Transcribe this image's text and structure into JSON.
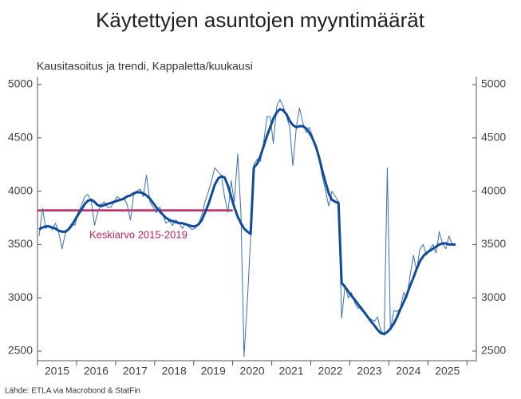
{
  "chart_data": {
    "type": "line",
    "title": "Käytettyjen asuntojen myyntimäärät",
    "subtitle": "Kausitasoitus ja trendi, Kappaletta/kuukausi",
    "source": "Lähde: ETLA via Macrobond & StatFin",
    "annotation": {
      "text": "Keskiarvo 2015-2019",
      "value": 3820,
      "x": [
        2015,
        2020
      ],
      "color": "#c0245c"
    },
    "xlim": [
      2015,
      2026.24
    ],
    "xticks": [
      {
        "value": 2015.5,
        "label": "2015"
      },
      {
        "value": 2016.5,
        "label": "2016"
      },
      {
        "value": 2017.5,
        "label": "2017"
      },
      {
        "value": 2018.5,
        "label": "2018"
      },
      {
        "value": 2019.5,
        "label": "2019"
      },
      {
        "value": 2020.5,
        "label": "2020"
      },
      {
        "value": 2021.5,
        "label": "2021"
      },
      {
        "value": 2022.5,
        "label": "2022"
      },
      {
        "value": 2023.5,
        "label": "2023"
      },
      {
        "value": 2024.5,
        "label": "2024"
      },
      {
        "value": 2025.5,
        "label": "2025"
      }
    ],
    "xminorticks": [
      2015,
      2016,
      2017,
      2018,
      2019,
      2020,
      2021,
      2022,
      2023,
      2024,
      2025,
      2026
    ],
    "ylim": [
      2410,
      5075
    ],
    "yticks": [
      2500,
      3000,
      3500,
      4000,
      4500,
      5000
    ],
    "y2lim": [
      2410,
      5075
    ],
    "y2ticks": [
      2500,
      3000,
      3500,
      4000,
      4500,
      5000
    ],
    "grid": false,
    "x": [
      2015.04,
      2015.13,
      2015.21,
      2015.29,
      2015.38,
      2015.46,
      2015.54,
      2015.63,
      2015.71,
      2015.79,
      2015.88,
      2015.96,
      2016.04,
      2016.13,
      2016.21,
      2016.29,
      2016.38,
      2016.46,
      2016.54,
      2016.63,
      2016.71,
      2016.79,
      2016.88,
      2016.96,
      2017.04,
      2017.13,
      2017.21,
      2017.29,
      2017.38,
      2017.46,
      2017.54,
      2017.63,
      2017.71,
      2017.79,
      2017.88,
      2017.96,
      2018.04,
      2018.13,
      2018.21,
      2018.29,
      2018.38,
      2018.46,
      2018.54,
      2018.63,
      2018.71,
      2018.79,
      2018.88,
      2018.96,
      2019.04,
      2019.13,
      2019.21,
      2019.29,
      2019.38,
      2019.46,
      2019.54,
      2019.63,
      2019.71,
      2019.79,
      2019.88,
      2019.96,
      2020.04,
      2020.13,
      2020.21,
      2020.29,
      2020.38,
      2020.46,
      2020.54,
      2020.63,
      2020.71,
      2020.79,
      2020.88,
      2020.96,
      2021.04,
      2021.13,
      2021.21,
      2021.29,
      2021.38,
      2021.46,
      2021.54,
      2021.63,
      2021.71,
      2021.79,
      2021.88,
      2021.96,
      2022.04,
      2022.13,
      2022.21,
      2022.29,
      2022.38,
      2022.46,
      2022.54,
      2022.63,
      2022.71,
      2022.79,
      2022.88,
      2022.96,
      2023.04,
      2023.13,
      2023.21,
      2023.29,
      2023.38,
      2023.46,
      2023.54,
      2023.63,
      2023.71,
      2023.79,
      2023.88,
      2023.96,
      2024.04,
      2024.13,
      2024.21,
      2024.29,
      2024.38,
      2024.46,
      2024.54,
      2024.63,
      2024.71,
      2024.79,
      2024.88,
      2024.96,
      2025.04,
      2025.13,
      2025.21,
      2025.29,
      2025.38,
      2025.46,
      2025.54,
      2025.63,
      2025.71
    ],
    "series": [
      {
        "color": "#3a6fb5",
        "width": 1,
        "values": [
          3580,
          3840,
          3650,
          3680,
          3640,
          3700,
          3620,
          3460,
          3600,
          3650,
          3700,
          3680,
          3800,
          3870,
          3950,
          3970,
          3900,
          3680,
          3800,
          3880,
          3900,
          3850,
          3850,
          3900,
          3950,
          3920,
          3940,
          3880,
          3730,
          3960,
          4000,
          4020,
          3950,
          4150,
          3900,
          3850,
          3800,
          3850,
          3780,
          3700,
          3720,
          3680,
          3730,
          3700,
          3650,
          3700,
          3660,
          3640,
          3650,
          3700,
          3780,
          3900,
          4000,
          4100,
          4220,
          4180,
          4150,
          3950,
          3800,
          4100,
          3900,
          4350,
          3800,
          2450,
          3000,
          3570,
          4250,
          4300,
          4280,
          4450,
          4700,
          4700,
          4450,
          4800,
          4860,
          4800,
          4700,
          4600,
          4240,
          4600,
          4780,
          4650,
          4550,
          4600,
          4520,
          4400,
          4300,
          4150,
          4000,
          3860,
          4000,
          3950,
          3900,
          2810,
          3120,
          3000,
          3050,
          2950,
          2900,
          2920,
          2870,
          2820,
          2800,
          2780,
          2820,
          2700,
          2650,
          4220,
          2700,
          2880,
          2870,
          2900,
          3050,
          3000,
          3200,
          3400,
          3250,
          3450,
          3500,
          3400,
          3450,
          3500,
          3420,
          3620,
          3500,
          3460,
          3580,
          3490,
          3500
        ]
      },
      {
        "color": "#104a9a",
        "width": 3,
        "values": [
          3640,
          3660,
          3670,
          3670,
          3660,
          3650,
          3630,
          3620,
          3620,
          3640,
          3680,
          3730,
          3780,
          3830,
          3880,
          3910,
          3920,
          3900,
          3870,
          3860,
          3870,
          3880,
          3890,
          3900,
          3910,
          3920,
          3930,
          3950,
          3960,
          3980,
          3990,
          3990,
          3980,
          3960,
          3930,
          3890,
          3850,
          3810,
          3780,
          3750,
          3730,
          3720,
          3710,
          3700,
          3700,
          3690,
          3680,
          3670,
          3670,
          3690,
          3730,
          3800,
          3880,
          3970,
          4060,
          4120,
          4140,
          4130,
          4050,
          3950,
          3850,
          3760,
          3700,
          3650,
          3620,
          3600,
          4220,
          4260,
          4330,
          4420,
          4520,
          4600,
          4680,
          4740,
          4770,
          4760,
          4720,
          4660,
          4620,
          4600,
          4610,
          4610,
          4590,
          4550,
          4500,
          4420,
          4320,
          4200,
          4080,
          3980,
          3920,
          3900,
          3890,
          3140,
          3100,
          3060,
          3020,
          2980,
          2940,
          2900,
          2860,
          2820,
          2780,
          2740,
          2700,
          2670,
          2660,
          2680,
          2710,
          2760,
          2820,
          2890,
          2960,
          3030,
          3110,
          3190,
          3270,
          3340,
          3390,
          3420,
          3440,
          3460,
          3480,
          3500,
          3510,
          3510,
          3500,
          3500,
          3500
        ]
      }
    ]
  }
}
